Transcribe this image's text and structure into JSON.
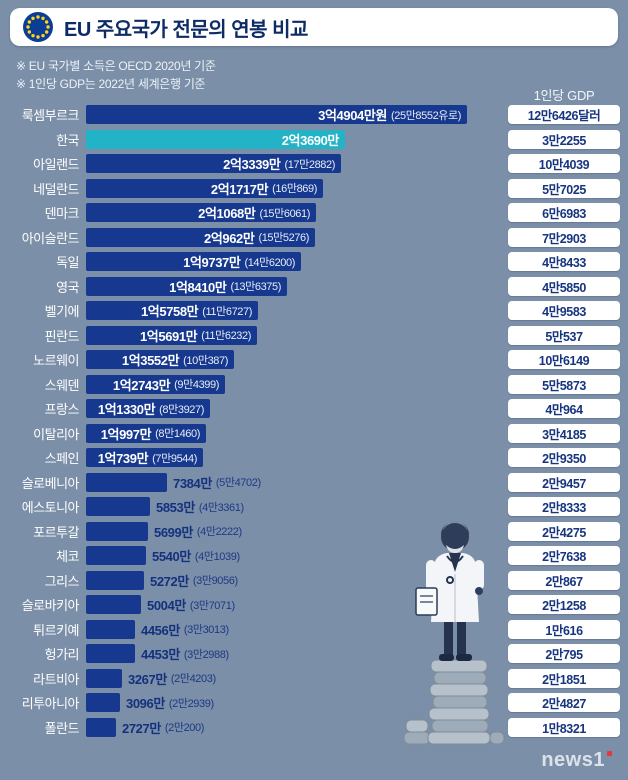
{
  "header": {
    "title": "EU 주요국가 전문의 연봉 비교"
  },
  "notes": [
    "※ EU 국가별 소득은 OECD 2020년 기준",
    "※ 1인당 GDP는 2022년 세계은행 기준"
  ],
  "gdp_column_header": "1인당 GDP",
  "footer": {
    "logo": "news1"
  },
  "colors": {
    "background": "#7b8fa8",
    "bar": "#16388f",
    "bar_highlight": "#23b3c7",
    "text_on_bar": "#ffffff",
    "text_outside_bar": "#14317e",
    "gdp_text": "#17357f",
    "eu_flag_blue": "#0b3c96",
    "eu_flag_star": "#ffd617"
  },
  "chart_data": {
    "type": "bar",
    "orientation": "horizontal",
    "title": "EU 주요국가 전문의 연봉 비교",
    "value_unit": "만원",
    "paren_unit": "유로",
    "gdp_unit": "달러",
    "max_value": 34904,
    "inside_label_threshold": 10000,
    "rows": [
      {
        "country": "룩셈부르크",
        "value": 34904,
        "salary": "3억4904만원",
        "euro": "(25만8552유로)",
        "gdp": "12만6426달러",
        "highlight": false
      },
      {
        "country": "한국",
        "value": 23690,
        "salary": "2억3690만",
        "euro": "",
        "gdp": "3만2255",
        "highlight": true
      },
      {
        "country": "아일랜드",
        "value": 23339,
        "salary": "2억3339만",
        "euro": "(17만2882)",
        "gdp": "10만4039",
        "highlight": false
      },
      {
        "country": "네덜란드",
        "value": 21717,
        "salary": "2억1717만",
        "euro": "(16만869)",
        "gdp": "5만7025",
        "highlight": false
      },
      {
        "country": "덴마크",
        "value": 21068,
        "salary": "2억1068만",
        "euro": "(15만6061)",
        "gdp": "6만6983",
        "highlight": false
      },
      {
        "country": "아이슬란드",
        "value": 20962,
        "salary": "2억962만",
        "euro": "(15만5276)",
        "gdp": "7만2903",
        "highlight": false
      },
      {
        "country": "독일",
        "value": 19737,
        "salary": "1억9737만",
        "euro": "(14만6200)",
        "gdp": "4만8433",
        "highlight": false
      },
      {
        "country": "영국",
        "value": 18410,
        "salary": "1억8410만",
        "euro": "(13만6375)",
        "gdp": "4만5850",
        "highlight": false
      },
      {
        "country": "벨기에",
        "value": 15758,
        "salary": "1억5758만",
        "euro": "(11만6727)",
        "gdp": "4만9583",
        "highlight": false
      },
      {
        "country": "핀란드",
        "value": 15691,
        "salary": "1억5691만",
        "euro": "(11만6232)",
        "gdp": "5만537",
        "highlight": false
      },
      {
        "country": "노르웨이",
        "value": 13552,
        "salary": "1억3552만",
        "euro": "(10만387)",
        "gdp": "10만6149",
        "highlight": false
      },
      {
        "country": "스웨덴",
        "value": 12743,
        "salary": "1억2743만",
        "euro": "(9만4399)",
        "gdp": "5만5873",
        "highlight": false
      },
      {
        "country": "프랑스",
        "value": 11330,
        "salary": "1억1330만",
        "euro": "(8만3927)",
        "gdp": "4만964",
        "highlight": false
      },
      {
        "country": "이탈리아",
        "value": 10997,
        "salary": "1억997만",
        "euro": "(8만1460)",
        "gdp": "3만4185",
        "highlight": false
      },
      {
        "country": "스페인",
        "value": 10739,
        "salary": "1억739만",
        "euro": "(7만9544)",
        "gdp": "2만9350",
        "highlight": false
      },
      {
        "country": "슬로베니아",
        "value": 7384,
        "salary": "7384만",
        "euro": "(5만4702)",
        "gdp": "2만9457",
        "highlight": false
      },
      {
        "country": "에스토니아",
        "value": 5853,
        "salary": "5853만",
        "euro": "(4만3361)",
        "gdp": "2만8333",
        "highlight": false
      },
      {
        "country": "포르투갈",
        "value": 5699,
        "salary": "5699만",
        "euro": "(4만2222)",
        "gdp": "2만4275",
        "highlight": false
      },
      {
        "country": "체코",
        "value": 5540,
        "salary": "5540만",
        "euro": "(4만1039)",
        "gdp": "2만7638",
        "highlight": false
      },
      {
        "country": "그리스",
        "value": 5272,
        "salary": "5272만",
        "euro": "(3만9056)",
        "gdp": "2만867",
        "highlight": false
      },
      {
        "country": "슬로바키아",
        "value": 5004,
        "salary": "5004만",
        "euro": "(3만7071)",
        "gdp": "2만1258",
        "highlight": false
      },
      {
        "country": "튀르키예",
        "value": 4456,
        "salary": "4456만",
        "euro": "(3만3013)",
        "gdp": "1만616",
        "highlight": false
      },
      {
        "country": "헝가리",
        "value": 4453,
        "salary": "4453만",
        "euro": "(3만2988)",
        "gdp": "2만795",
        "highlight": false
      },
      {
        "country": "라트비아",
        "value": 3267,
        "salary": "3267만",
        "euro": "(2만4203)",
        "gdp": "2만1851",
        "highlight": false
      },
      {
        "country": "리투아니아",
        "value": 3096,
        "salary": "3096만",
        "euro": "(2만2939)",
        "gdp": "2만4827",
        "highlight": false
      },
      {
        "country": "폴란드",
        "value": 2727,
        "salary": "2727만",
        "euro": "(2만200)",
        "gdp": "1만8321",
        "highlight": false
      }
    ]
  }
}
